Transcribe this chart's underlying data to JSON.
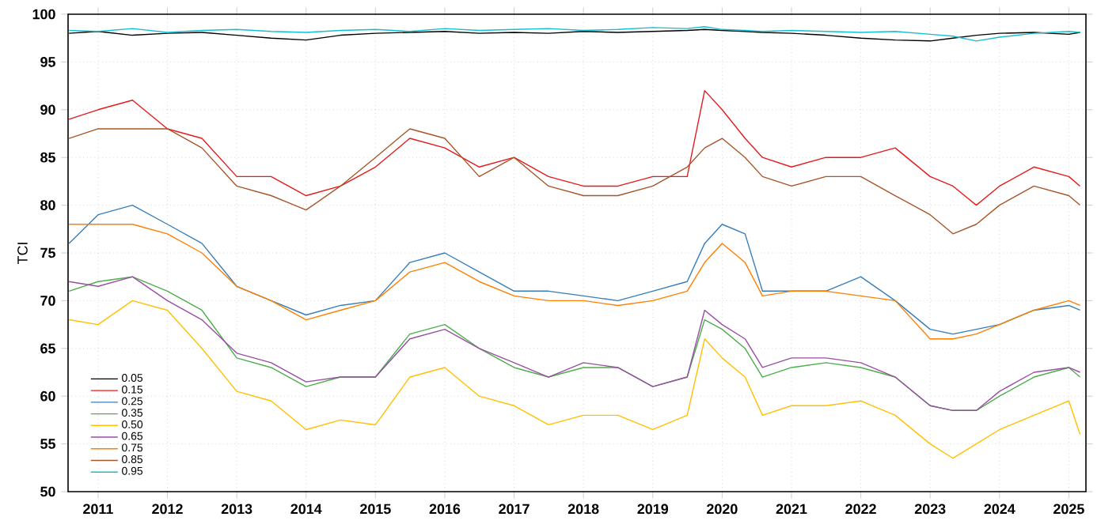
{
  "chart_data": {
    "type": "line",
    "ylabel": "TCI",
    "x": [
      "2010-08",
      "2011-01",
      "2011-07",
      "2012-01",
      "2012-07",
      "2013-01",
      "2013-07",
      "2014-01",
      "2014-07",
      "2015-01",
      "2015-07",
      "2016-01",
      "2016-07",
      "2017-01",
      "2017-07",
      "2018-01",
      "2018-07",
      "2019-01",
      "2019-07",
      "2019-10",
      "2020-01",
      "2020-05",
      "2020-08",
      "2021-01",
      "2021-07",
      "2022-01",
      "2022-07",
      "2023-01",
      "2023-05",
      "2023-09",
      "2024-01",
      "2024-07",
      "2025-01",
      "2025-03"
    ],
    "series": [
      {
        "name": "0.05",
        "color": "#000000",
        "values": [
          98,
          98.2,
          97.8,
          98,
          98.1,
          97.8,
          97.5,
          97.3,
          97.8,
          98,
          98.1,
          98.2,
          98,
          98.1,
          98,
          98.2,
          98.1,
          98.2,
          98.3,
          98.4,
          98.3,
          98.2,
          98.1,
          98,
          97.8,
          97.5,
          97.3,
          97.2,
          97.5,
          97.8,
          98,
          98.1,
          97.9,
          98.1
        ]
      },
      {
        "name": "0.15",
        "color": "#e41a1c",
        "values": [
          89,
          90,
          91,
          88,
          87,
          83,
          83,
          81,
          82,
          84,
          87,
          86,
          84,
          85,
          83,
          82,
          82,
          83,
          83,
          92,
          90,
          87,
          85,
          84,
          85,
          85,
          86,
          83,
          82,
          80,
          82,
          84,
          83,
          82
        ]
      },
      {
        "name": "0.25",
        "color": "#377eb8",
        "values": [
          76,
          79,
          80,
          78,
          76,
          71.5,
          70,
          68.5,
          69.5,
          70,
          74,
          75,
          73,
          71,
          71,
          70.5,
          70,
          71,
          72,
          76,
          78,
          77,
          71,
          71,
          71,
          72.5,
          70,
          67,
          66.5,
          67,
          67.5,
          69,
          69.5,
          69
        ]
      },
      {
        "name": "0.35",
        "color": "#4daf4a",
        "values": [
          71,
          72,
          72.5,
          71,
          69,
          64,
          63,
          61,
          62,
          62,
          66.5,
          67.5,
          65,
          63,
          62,
          63,
          63,
          61,
          62,
          68,
          67,
          65,
          62,
          63,
          63.5,
          63,
          62,
          59,
          58.5,
          58.5,
          60,
          62,
          63,
          62
        ]
      },
      {
        "name": "0.50",
        "color": "#ffc000",
        "values": [
          68,
          67.5,
          70,
          69,
          65,
          60.5,
          59.5,
          56.5,
          57.5,
          57,
          62,
          63,
          60,
          59,
          57,
          58,
          58,
          56.5,
          58,
          66,
          64,
          62,
          58,
          59,
          59,
          59.5,
          58,
          55,
          53.5,
          55,
          56.5,
          58,
          59.5,
          56
        ]
      },
      {
        "name": "0.65",
        "color": "#984ea3",
        "values": [
          72,
          71.5,
          72.5,
          70,
          68,
          64.5,
          63.5,
          61.5,
          62,
          62,
          66,
          67,
          65,
          63.5,
          62,
          63.5,
          63,
          61,
          62,
          69,
          67.5,
          66,
          63,
          64,
          64,
          63.5,
          62,
          59,
          58.5,
          58.5,
          60.5,
          62.5,
          63,
          62.5
        ]
      },
      {
        "name": "0.75",
        "color": "#ff7f00",
        "values": [
          78,
          78,
          78,
          77,
          75,
          71.5,
          70,
          68,
          69,
          70,
          73,
          74,
          72,
          70.5,
          70,
          70,
          69.5,
          70,
          71,
          74,
          76,
          74,
          70.5,
          71,
          71,
          70.5,
          70,
          66,
          66,
          66.5,
          67.5,
          69,
          70,
          69.5
        ]
      },
      {
        "name": "0.85",
        "color": "#a65628",
        "values": [
          87,
          88,
          88,
          88,
          86,
          82,
          81,
          79.5,
          82,
          85,
          88,
          87,
          83,
          85,
          82,
          81,
          81,
          82,
          84,
          86,
          87,
          85,
          83,
          82,
          83,
          83,
          81,
          79,
          77,
          78,
          80,
          82,
          81,
          80
        ]
      },
      {
        "name": "0.95",
        "color": "#17becf",
        "values": [
          98.3,
          98.2,
          98.5,
          98.1,
          98.3,
          98.4,
          98.2,
          98.1,
          98.3,
          98.4,
          98.2,
          98.5,
          98.3,
          98.4,
          98.5,
          98.3,
          98.4,
          98.6,
          98.5,
          98.7,
          98.4,
          98.3,
          98.2,
          98.3,
          98.2,
          98.1,
          98.2,
          97.9,
          97.7,
          97.2,
          97.6,
          98,
          98.2,
          98.1
        ]
      }
    ],
    "xlim": [
      "2010-07-27",
      "2025-04-01"
    ],
    "xticks": [
      "2011",
      "2012",
      "2013",
      "2014",
      "2015",
      "2016",
      "2017",
      "2018",
      "2019",
      "2020",
      "2021",
      "2022",
      "2023",
      "2024",
      "2025"
    ],
    "ylim": [
      50,
      100
    ],
    "yticks": [
      50,
      55,
      60,
      65,
      70,
      75,
      80,
      85,
      90,
      95,
      100
    ],
    "grid": true,
    "legend": "bottom left",
    "line_style": "solid",
    "marker": "none"
  }
}
